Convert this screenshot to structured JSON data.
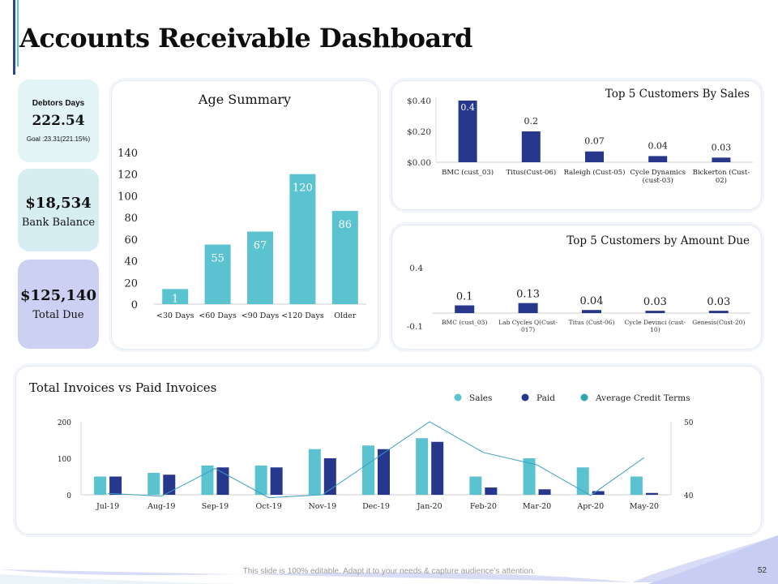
{
  "page": {
    "title": "Accounts Receivable Dashboard",
    "footer": "This slide is 100% editable. Adapt it to your needs & capture audience’s attention.",
    "page_number": "52"
  },
  "kpis": {
    "debtors": {
      "label": "Debtors Days",
      "value": "222.54",
      "goal": "Goal :23.31(221.15%)"
    },
    "bank": {
      "value": "$18,534",
      "label": "Bank Balance"
    },
    "due": {
      "value": "$125,140",
      "label": "Total Due"
    }
  },
  "colors": {
    "teal": "#5bc2cf",
    "navy": "#26378c",
    "line": "#3a9ec4"
  },
  "chart_data": [
    {
      "id": "age",
      "type": "bar",
      "title": "Age Summary",
      "categories": [
        "<30 Days",
        "<60 Days",
        "<90 Days",
        "<120 Days",
        "Older"
      ],
      "values": [
        1,
        55,
        67,
        120,
        86
      ],
      "data_labels": [
        "1",
        "55",
        "67",
        "120",
        "86"
      ],
      "ylim": [
        0,
        140
      ],
      "yticks": [
        "0",
        "20",
        "40",
        "60",
        "80",
        "100",
        "120",
        "140"
      ],
      "ytick_values": [
        0,
        20,
        40,
        60,
        80,
        100,
        120,
        140
      ],
      "bar_value_for_1": 14
    },
    {
      "id": "sales",
      "type": "bar",
      "title": "Top 5 Customers By Sales",
      "categories": [
        [
          "BMC (cust_03)"
        ],
        [
          "Titus(Cust-06)"
        ],
        [
          "Raleigh (Cust-05)"
        ],
        [
          "Cycle Dynamics",
          "(cust-03)"
        ],
        [
          "Bickerton (Cust-",
          "02)"
        ]
      ],
      "values": [
        0.4,
        0.2,
        0.07,
        0.04,
        0.03
      ],
      "data_labels": [
        "0.4",
        "0.2",
        "0.07",
        "0.04",
        "0.03"
      ],
      "ylim": [
        0,
        0.4
      ],
      "yticks": [
        "$0.00",
        "$0.20",
        "$0.40"
      ],
      "ytick_values": [
        0,
        0.2,
        0.4
      ]
    },
    {
      "id": "due",
      "type": "bar",
      "title": "Top 5 Customers by Amount Due",
      "categories": [
        [
          "BMC (cust_03)"
        ],
        [
          "Lab Cycles Q(Cust-",
          "017)"
        ],
        [
          "Titus (Cust-06)"
        ],
        [
          "Cycle Devinci (cust-",
          "10)"
        ],
        [
          "Genesis(Cust-20)"
        ]
      ],
      "values": [
        0.1,
        0.13,
        0.04,
        0.03,
        0.03
      ],
      "data_labels": [
        "0.1",
        "0.13",
        "0.04",
        "0.03",
        "0.03"
      ],
      "ylim": [
        -0.1,
        0.4
      ],
      "yticks": [
        "-0.1",
        "0.4"
      ],
      "ytick_values": [
        -0.1,
        0.4
      ]
    },
    {
      "id": "invoices",
      "type": "bar",
      "title": "Total Invoices vs Paid Invoices",
      "categories": [
        "Jul-19",
        "Aug-19",
        "Sep-19",
        "Oct-19",
        "Nov-19",
        "Dec-19",
        "Jan-20",
        "Feb-20",
        "Mar-20",
        "Apr-20",
        "May-20"
      ],
      "series": [
        {
          "name": "Sales",
          "values": [
            50,
            60,
            80,
            80,
            125,
            135,
            155,
            50,
            100,
            75,
            50
          ]
        },
        {
          "name": "Paid",
          "values": [
            50,
            55,
            75,
            75,
            100,
            125,
            145,
            20,
            15,
            10,
            5
          ]
        },
        {
          "name": "Average Credit Terms",
          "axis": "right",
          "values": [
            40.2,
            39.8,
            43.6,
            39.6,
            40,
            45,
            50,
            45.8,
            44.1,
            39.9,
            45.1
          ]
        }
      ],
      "ylim": [
        0,
        200
      ],
      "yticks": [
        "0",
        "100",
        "200"
      ],
      "ytick_values": [
        0,
        100,
        200
      ],
      "y2lim": [
        40,
        50
      ],
      "y2ticks": [
        "40",
        "50"
      ],
      "y2tick_values": [
        40,
        50
      ]
    }
  ]
}
